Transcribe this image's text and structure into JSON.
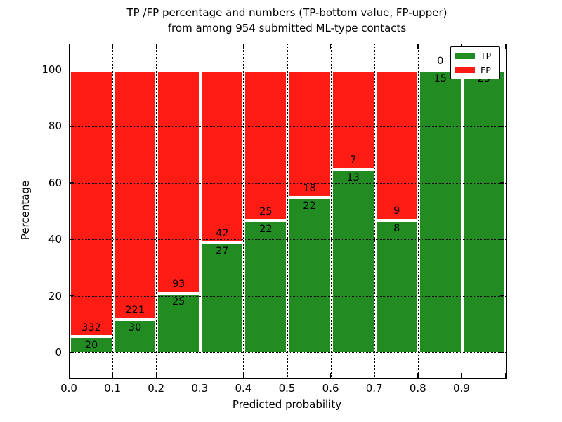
{
  "title": {
    "line1": "TP /FP percentage and numbers (TP-bottom value, FP-upper)",
    "line2": "from among 954 submitted ML-type contacts"
  },
  "axes": {
    "xlabel": "Predicted probability",
    "ylabel": "Percentage",
    "x_tick_labels": [
      "0.0",
      "0.1",
      "0.2",
      "0.3",
      "0.4",
      "0.5",
      "0.6",
      "0.7",
      "0.8",
      "0.9"
    ],
    "y_tick_labels": [
      "0",
      "20",
      "40",
      "60",
      "80",
      "100"
    ],
    "y_tick_values": [
      0,
      20,
      40,
      60,
      80,
      100
    ],
    "grid_style": "dotted"
  },
  "legend": {
    "position": "upper right",
    "items": [
      {
        "label": "TP",
        "color": "#228b22"
      },
      {
        "label": "FP",
        "color": "#ff1c14"
      }
    ]
  },
  "chart_data": {
    "type": "bar",
    "stacked": true,
    "normalized_to_percent": true,
    "title": "TP /FP percentage and numbers (TP-bottom value, FP-upper) from among 954 submitted ML-type contacts",
    "xlabel": "Predicted probability",
    "ylabel": "Percentage",
    "total_contacts": 954,
    "categories": [
      "0.0-0.1",
      "0.1-0.2",
      "0.2-0.3",
      "0.3-0.4",
      "0.4-0.5",
      "0.5-0.6",
      "0.6-0.7",
      "0.7-0.8",
      "0.8-0.9",
      "0.9-1.0"
    ],
    "x_bin_edges": [
      0.0,
      0.1,
      0.2,
      0.3,
      0.4,
      0.5,
      0.6,
      0.7,
      0.8,
      0.9,
      1.0
    ],
    "series": [
      {
        "name": "TP",
        "color": "#228b22",
        "values": [
          20,
          30,
          25,
          27,
          22,
          22,
          13,
          8,
          15,
          25
        ]
      },
      {
        "name": "FP",
        "color": "#ff1c14",
        "values": [
          332,
          221,
          93,
          42,
          25,
          18,
          7,
          9,
          0,
          0
        ]
      }
    ],
    "tp_percent": [
      5.68,
      11.95,
      21.19,
      39.13,
      46.81,
      55.0,
      65.0,
      47.06,
      100.0,
      100.0
    ],
    "bar_labels": {
      "tp": [
        "20",
        "30",
        "25",
        "27",
        "22",
        "22",
        "13",
        "8",
        "15",
        "25"
      ],
      "fp": [
        "332",
        "221",
        "93",
        "42",
        "25",
        "18",
        "7",
        "9",
        "0",
        ""
      ]
    },
    "ylim": [
      -9,
      109
    ],
    "xlim": [
      0.0,
      1.0
    ],
    "grid": true,
    "legend_position": "upper right"
  }
}
